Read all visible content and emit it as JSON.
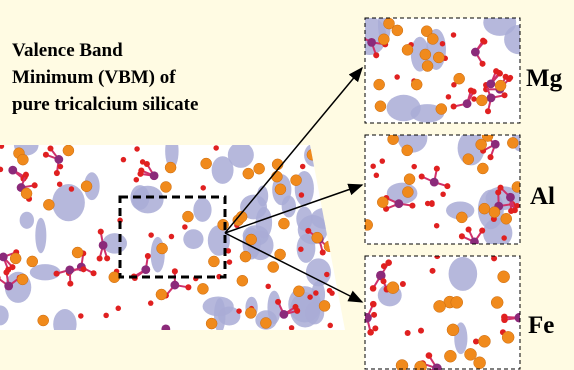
{
  "title_lines": [
    "Valence Band",
    "Minimum (VBM) of",
    "pure tricalcium silicate"
  ],
  "panels": [
    {
      "label": "Mg"
    },
    {
      "label": "Al"
    },
    {
      "label": "Fe"
    }
  ]
}
